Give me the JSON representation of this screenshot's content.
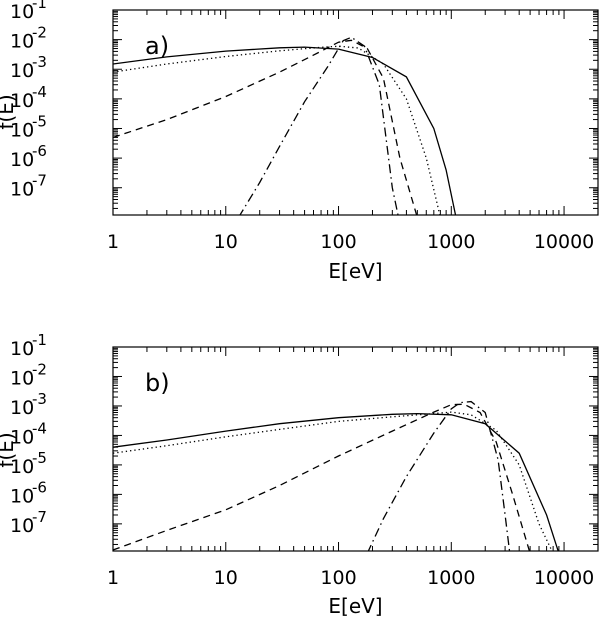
{
  "chart_data": [
    {
      "type": "line",
      "panel_label": "a)",
      "xlabel": "E[eV]",
      "ylabel": "f(E)",
      "xscale": "log",
      "yscale": "log",
      "xlim": [
        1,
        20000
      ],
      "ylim": [
        1.2e-08,
        0.1
      ],
      "xticks": [
        1,
        10,
        100,
        1000,
        10000
      ],
      "xticklabels": [
        "1",
        "10",
        "100",
        "1000",
        "10000"
      ],
      "yticks": [
        1e-07,
        1e-06,
        1e-05,
        0.0001,
        0.001,
        0.01,
        0.1
      ],
      "yticklabel_base": "10",
      "yticklabel_exponents": [
        "-7",
        "-6",
        "-5",
        "-4",
        "-3",
        "-2",
        "-1"
      ],
      "series": [
        {
          "style": "solid",
          "x": [
            1,
            3,
            10,
            30,
            50,
            100,
            200,
            400,
            700,
            900,
            1100
          ],
          "y": [
            0.0015,
            0.0026,
            0.0041,
            0.0053,
            0.0056,
            0.0048,
            0.0025,
            0.00055,
            1e-05,
            4e-07,
            1e-08
          ]
        },
        {
          "style": "dotted",
          "x": [
            1,
            3,
            10,
            30,
            70,
            100,
            150,
            250,
            400,
            600,
            800
          ],
          "y": [
            0.0008,
            0.0015,
            0.0027,
            0.0042,
            0.0055,
            0.006,
            0.0052,
            0.0015,
            0.0001,
            1e-06,
            1e-08
          ]
        },
        {
          "style": "dashed",
          "x": [
            1,
            3,
            10,
            30,
            60,
            100,
            130,
            180,
            250,
            350,
            500
          ],
          "y": [
            5e-06,
            2e-05,
            0.00012,
            0.0008,
            0.003,
            0.0082,
            0.0095,
            0.005,
            0.0005,
            1e-06,
            1e-08
          ]
        },
        {
          "style": "dashdot",
          "x": [
            13,
            20,
            30,
            50,
            80,
            110,
            130,
            170,
            230,
            300,
            340
          ],
          "y": [
            1e-08,
            1.5e-07,
            2.5e-06,
            8e-05,
            0.0012,
            0.0092,
            0.012,
            0.006,
            0.0003,
            1e-07,
            1e-08
          ]
        }
      ]
    },
    {
      "type": "line",
      "panel_label": "b)",
      "xlabel": "E[eV]",
      "ylabel": "f(E)",
      "xscale": "log",
      "yscale": "log",
      "xlim": [
        1,
        20000
      ],
      "ylim": [
        1.2e-08,
        0.1
      ],
      "xticks": [
        1,
        10,
        100,
        1000,
        10000
      ],
      "xticklabels": [
        "1",
        "10",
        "100",
        "1000",
        "10000"
      ],
      "yticks": [
        1e-07,
        1e-06,
        1e-05,
        0.0001,
        0.001,
        0.01,
        0.1
      ],
      "yticklabel_base": "10",
      "yticklabel_exponents": [
        "-7",
        "-6",
        "-5",
        "-4",
        "-3",
        "-2",
        "-1"
      ],
      "series": [
        {
          "style": "solid",
          "x": [
            1,
            3,
            10,
            30,
            100,
            300,
            500,
            1000,
            2000,
            4000,
            7000,
            9000
          ],
          "y": [
            4e-05,
            7e-05,
            0.00014,
            0.00025,
            0.0004,
            0.00052,
            0.00055,
            0.0005,
            0.00025,
            2.5e-05,
            2e-07,
            1e-08
          ]
        },
        {
          "style": "dotted",
          "x": [
            1,
            3,
            10,
            30,
            100,
            300,
            700,
            1000,
            1500,
            2500,
            4000,
            6000,
            8000
          ],
          "y": [
            2.5e-05,
            4.5e-05,
            9e-05,
            0.00016,
            0.0003,
            0.00043,
            0.00055,
            0.00062,
            0.0005,
            0.00015,
            1e-05,
            1e-07,
            1e-08
          ]
        },
        {
          "style": "dashed",
          "x": [
            1,
            3,
            10,
            30,
            100,
            300,
            700,
            1000,
            1300,
            1800,
            2500,
            3500,
            5000
          ],
          "y": [
            1.3e-08,
            6e-08,
            3e-07,
            2e-06,
            2e-05,
            0.00014,
            0.00062,
            0.0011,
            0.00115,
            0.0006,
            6e-05,
            1e-06,
            1e-08
          ]
        },
        {
          "style": "dashdot",
          "x": [
            180,
            250,
            400,
            700,
            1000,
            1200,
            1500,
            2000,
            2600,
            3000,
            3300
          ],
          "y": [
            1e-08,
            1.5e-07,
            4e-06,
            0.00012,
            0.0008,
            0.0013,
            0.0014,
            0.0006,
            1.5e-05,
            2e-07,
            1e-08
          ]
        }
      ]
    }
  ]
}
